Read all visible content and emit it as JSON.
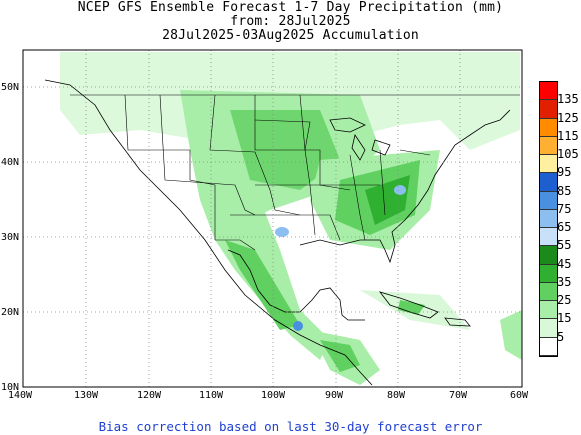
{
  "title": {
    "line1": "NCEP GFS Ensemble Forecast 1-7 Day Precipitation (mm)",
    "line2": "from: 28Jul2025",
    "line3": "28Jul2025-03Aug2025 Accumulation"
  },
  "axes": {
    "lat_labels": [
      "50N",
      "40N",
      "30N",
      "20N",
      "10N"
    ],
    "lon_labels": [
      "140W",
      "130W",
      "120W",
      "110W",
      "100W",
      "90W",
      "80W",
      "70W",
      "60W"
    ]
  },
  "legend": {
    "labels": [
      "135",
      "125",
      "115",
      "105",
      "95",
      "85",
      "75",
      "65",
      "55",
      "45",
      "35",
      "25",
      "15",
      "5"
    ],
    "colors": [
      "#ff0000",
      "#e02000",
      "#ff8c00",
      "#ffb030",
      "#fff0a0",
      "#1e5fd0",
      "#4a90e0",
      "#8cbff0",
      "#c8e0f8",
      "#1a8a1a",
      "#30b030",
      "#60d060",
      "#a8eea8",
      "#d8f8d8",
      "#ffffff"
    ]
  },
  "footer": "Bias correction based on last 30-day forecast error"
}
